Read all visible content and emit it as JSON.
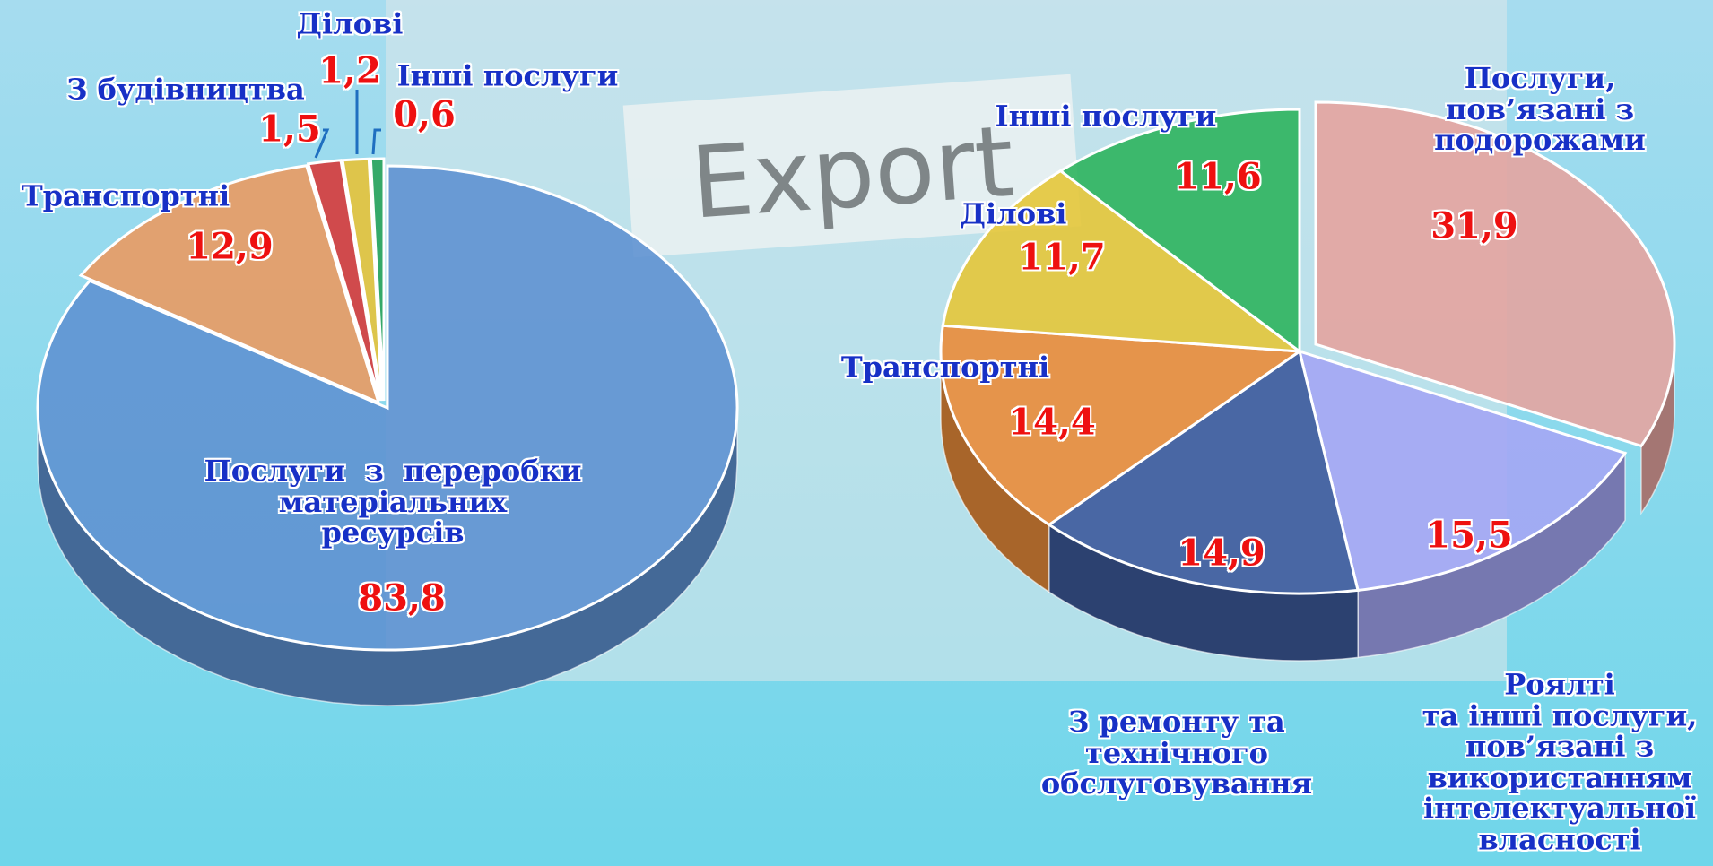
{
  "background": {
    "text": "Export"
  },
  "chart_data": [
    {
      "type": "pie",
      "categories": [
        "Послуги  з  переробки\nматеріальних\nресурсів",
        "Транспортні",
        "З будівництва",
        "Ділові",
        "Інші послуги"
      ],
      "values": [
        83.8,
        12.9,
        1.5,
        1.2,
        0.6
      ],
      "value_labels": [
        "83,8",
        "12,9",
        "1,5",
        "1,2",
        "0,6"
      ],
      "colors": [
        "#5f92d2",
        "#e99a62",
        "#d63a3a",
        "#e6c238",
        "#2aa35a"
      ]
    },
    {
      "type": "pie",
      "categories": [
        "Послуги,\nпов’язані з\nподорожами",
        "Роялті\nта інші послуги,\nпов’язані з\nвикористанням\nінтелектуальної\nвласності",
        "З ремонту та\nтехнічного\nобслуговування",
        "Транспортні",
        "Ділові",
        "Інші послуги"
      ],
      "values": [
        31.9,
        15.5,
        14.9,
        14.4,
        11.7,
        11.6
      ],
      "value_labels": [
        "31,9",
        "15,5",
        "14,9",
        "14,4",
        "11,7",
        "11,6"
      ],
      "colors": [
        "#e4a4a0",
        "#a4a6f4",
        "#3d5a9c",
        "#ea8c3a",
        "#e4c63a",
        "#2db45e"
      ]
    }
  ]
}
